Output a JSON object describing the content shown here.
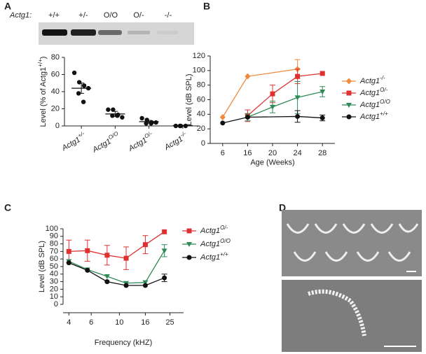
{
  "panels": [
    "A",
    "B",
    "C",
    "D"
  ],
  "blot": {
    "label": "Actg1:",
    "lanes": [
      "+/+",
      "+/-",
      "O/O",
      "O/-",
      "-/-"
    ]
  },
  "chart_data": [
    {
      "type": "dot",
      "ylabel": "Level (% of Actg1+/+)",
      "categories": [
        "Actg1+/-",
        "Actg1O/O",
        "Actg1O/-",
        "Actg1-/-"
      ],
      "values": [
        [
          62,
          51,
          47,
          38,
          28,
          44
        ],
        [
          19,
          19,
          13,
          12,
          12,
          10
        ],
        [
          9,
          7,
          4,
          3,
          3,
          4
        ],
        [
          0,
          0,
          0,
          0
        ]
      ],
      "means": [
        44,
        14,
        5,
        0.5
      ],
      "errors": [
        6,
        3,
        1.5,
        0.3
      ],
      "ylim": [
        0,
        80
      ],
      "yticks": [
        0,
        20,
        40,
        60,
        80
      ],
      "color": "#111111"
    },
    {
      "type": "line",
      "ylabel": "Level (dB SPL)",
      "xlabel": "Age (Weeks)",
      "categories": [
        6,
        16,
        20,
        24,
        28
      ],
      "ylim": [
        0,
        120
      ],
      "yticks": [
        0,
        20,
        40,
        60,
        80,
        100,
        120
      ],
      "series": [
        {
          "name": "Actg1-/-",
          "color": "#f0883e",
          "marker": "diamond",
          "x": [
            6,
            16,
            24
          ],
          "values": [
            36,
            92,
            102
          ],
          "errors": [
            null,
            null,
            13
          ]
        },
        {
          "name": "Actg1O/-",
          "color": "#e03131",
          "marker": "square",
          "x": [
            16,
            20,
            24,
            28
          ],
          "values": [
            38,
            68,
            92,
            96
          ],
          "errors": [
            8,
            12,
            10,
            null
          ]
        },
        {
          "name": "Actg1O/O",
          "color": "#2e8b57",
          "marker": "triangle",
          "x": [
            16,
            20,
            24,
            28
          ],
          "values": [
            36,
            50,
            63,
            71
          ],
          "errors": [
            5,
            8,
            22,
            7
          ]
        },
        {
          "name": "Actg1+/+",
          "color": "#111111",
          "marker": "circle",
          "x": [
            6,
            16,
            24,
            28
          ],
          "values": [
            28,
            36,
            37,
            35
          ],
          "errors": [
            null,
            null,
            8,
            4
          ]
        }
      ]
    },
    {
      "type": "line",
      "ylabel": "Level (dB SPL)",
      "xlabel": "Frequency (kHZ)",
      "xscale": "log",
      "xlim": [
        3.6,
        32
      ],
      "xticks": [
        4,
        6,
        10,
        16,
        25
      ],
      "ylim": [
        0,
        100
      ],
      "yticks": [
        0,
        10,
        20,
        30,
        40,
        50,
        60,
        70,
        80,
        90,
        100
      ],
      "series": [
        {
          "name": "Actg1O/-",
          "color": "#e03131",
          "marker": "square",
          "x": [
            4,
            5.6,
            8,
            11.3,
            16,
            22.6
          ],
          "values": [
            70,
            71,
            65,
            61,
            79,
            96
          ],
          "errors": [
            15,
            14,
            13,
            15,
            12,
            null
          ]
        },
        {
          "name": "Actg1O/O",
          "color": "#2e8b57",
          "marker": "triangle",
          "x": [
            4,
            5.6,
            8,
            11.3,
            16,
            22.6
          ],
          "values": [
            57,
            46,
            37,
            28,
            29,
            71
          ],
          "errors": [
            null,
            null,
            null,
            null,
            null,
            8
          ]
        },
        {
          "name": "Actg1+/+",
          "color": "#111111",
          "marker": "circle",
          "x": [
            4,
            5.6,
            8,
            11.3,
            16,
            22.6
          ],
          "values": [
            55,
            45,
            30,
            25,
            25,
            35
          ],
          "errors": [
            null,
            null,
            null,
            null,
            null,
            5
          ]
        }
      ]
    }
  ]
}
